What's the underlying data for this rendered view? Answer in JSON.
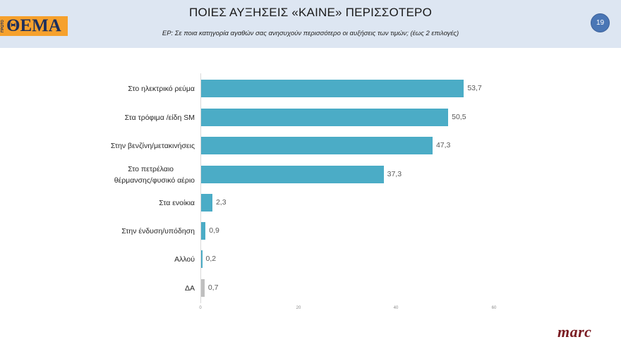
{
  "header": {
    "logo_small": "ΠΡΩΤΟ",
    "logo_main": "ΘΕΜΑ",
    "title": "ΠΟΙΕΣ ΑΥΞΗΣΕΙΣ «ΚΑΙΝΕ» ΠΕΡΙΣΣΟΤΕΡΟ",
    "subtitle": "ΕΡ:  Σε ποια κατηγορία αγαθών σας ανησυχούν περισσότερο οι αυξήσεις των τιμών; (έως 2 επιλογές)",
    "page_number": "19"
  },
  "footer": {
    "brand": "marc"
  },
  "colors": {
    "bar": "#4bacc6",
    "bar_da": "#bfbfbf",
    "header_bg": "#dde6f2",
    "badge": "#4a76b5",
    "brand": "#7a1c22"
  },
  "chart_data": {
    "type": "bar",
    "orientation": "horizontal",
    "title": "ΠΟΙΕΣ ΑΥΞΗΣΕΙΣ «ΚΑΙΝΕ» ΠΕΡΙΣΣΟΤΕΡΟ",
    "subtitle": "ΕΡ:  Σε ποια κατηγορία αγαθών σας ανησυχούν περισσότερο οι αυξήσεις των τιμών; (έως 2 επιλογές)",
    "categories": [
      "Στο ηλεκτρικό ρεύμα",
      "Στα τρόφιμα /είδη SM",
      "Στην βενζίνη/μετακινήσεις",
      "Στο πετρέλαιο θέρμανσης/φυσικό αέριο",
      "Στα ενοίκια",
      "Στην ένδυση/υπόδηση",
      "Αλλού",
      "ΔΑ"
    ],
    "values": [
      53.7,
      50.5,
      47.3,
      37.3,
      2.3,
      0.9,
      0.2,
      0.7
    ],
    "value_labels": [
      "53,7",
      "50,5",
      "47,3",
      "37,3",
      "2,3",
      "0,9",
      "0,2",
      "0,7"
    ],
    "xlabel": "",
    "ylabel": "",
    "xlim": [
      0,
      60
    ],
    "xticks": [
      "0",
      "20",
      "40",
      "60"
    ],
    "grid": false,
    "legend": null
  },
  "rows": [
    {
      "label": "Στο ηλεκτρικό ρεύμα",
      "value": "53,7"
    },
    {
      "label": "Στα τρόφιμα /είδη SM",
      "value": "50,5"
    },
    {
      "label": "Στην βενζίνη/μετακινήσεις",
      "value": "47,3"
    },
    {
      "label_line1": "Στο πετρέλαιο",
      "label_line2": "θέρμανσης/φυσικό αέριο",
      "value": "37,3"
    },
    {
      "label": "Στα ενοίκια",
      "value": "2,3"
    },
    {
      "label": "Στην ένδυση/υπόδηση",
      "value": "0,9"
    },
    {
      "label": "Αλλού",
      "value": "0,2"
    },
    {
      "label": "ΔΑ",
      "value": "0,7"
    }
  ]
}
